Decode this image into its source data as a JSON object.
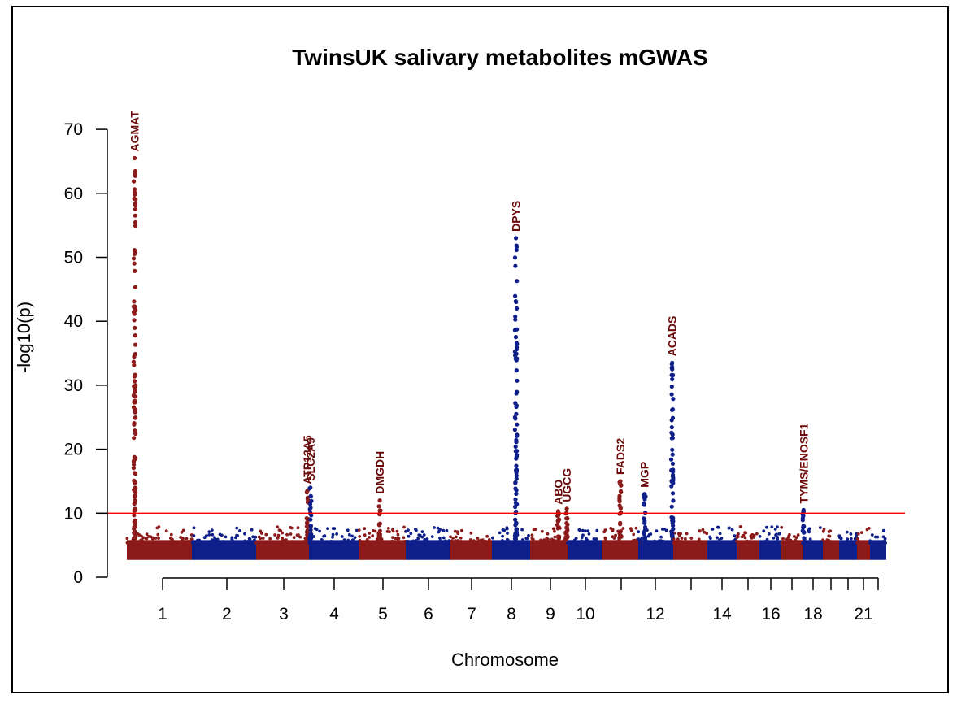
{
  "chart_data": {
    "type": "scatter",
    "title": "TwinsUK salivary metabolites mGWAS",
    "xlabel": "Chromosome",
    "ylabel": "-log10(p)",
    "ylim": [
      0,
      70
    ],
    "yticks": [
      0,
      10,
      20,
      30,
      40,
      50,
      60,
      70
    ],
    "significance_threshold": 10,
    "colors": {
      "odd": "#8b1a1a",
      "even": "#0f1f8a",
      "threshold": "#ff0000"
    },
    "chromosomes": [
      {
        "chr": 1,
        "label": "1"
      },
      {
        "chr": 2,
        "label": "2"
      },
      {
        "chr": 3,
        "label": "3"
      },
      {
        "chr": 4,
        "label": "4"
      },
      {
        "chr": 5,
        "label": "5"
      },
      {
        "chr": 6,
        "label": "6"
      },
      {
        "chr": 7,
        "label": "7"
      },
      {
        "chr": 8,
        "label": "8"
      },
      {
        "chr": 9,
        "label": "9"
      },
      {
        "chr": 10,
        "label": "10"
      },
      {
        "chr": 11,
        "label": ""
      },
      {
        "chr": 12,
        "label": "12"
      },
      {
        "chr": 13,
        "label": ""
      },
      {
        "chr": 14,
        "label": "14"
      },
      {
        "chr": 15,
        "label": ""
      },
      {
        "chr": 16,
        "label": "16"
      },
      {
        "chr": 17,
        "label": ""
      },
      {
        "chr": 18,
        "label": "18"
      },
      {
        "chr": 19,
        "label": ""
      },
      {
        "chr": 20,
        "label": ""
      },
      {
        "chr": 21,
        "label": "21"
      },
      {
        "chr": 22,
        "label": ""
      }
    ],
    "peaks": [
      {
        "gene": "AGMAT",
        "chr": 1,
        "pos": 0.12,
        "max": 65.5
      },
      {
        "gene": "ATP13A5",
        "chr": 3,
        "pos": 0.97,
        "max": 13.5
      },
      {
        "gene": "SLC2A9",
        "chr": 4,
        "pos": 0.03,
        "max": 14.0
      },
      {
        "gene": "DMGDH",
        "chr": 5,
        "pos": 0.45,
        "max": 12.0
      },
      {
        "gene": "DPYS",
        "chr": 8,
        "pos": 0.63,
        "max": 53.0
      },
      {
        "gene": "ABO",
        "chr": 9,
        "pos": 0.75,
        "max": 10.3
      },
      {
        "gene": "UGCG",
        "chr": 9,
        "pos": 0.98,
        "max": 10.7
      },
      {
        "gene": "FADS2",
        "chr": 11,
        "pos": 0.5,
        "max": 15.0
      },
      {
        "gene": "MGP",
        "chr": 12,
        "pos": 0.18,
        "max": 13.0
      },
      {
        "gene": "ACADS",
        "chr": 12,
        "pos": 0.97,
        "max": 33.5
      },
      {
        "gene": "TYMS/ENOSF1",
        "chr": 18,
        "pos": 0.05,
        "max": 10.5
      }
    ]
  }
}
